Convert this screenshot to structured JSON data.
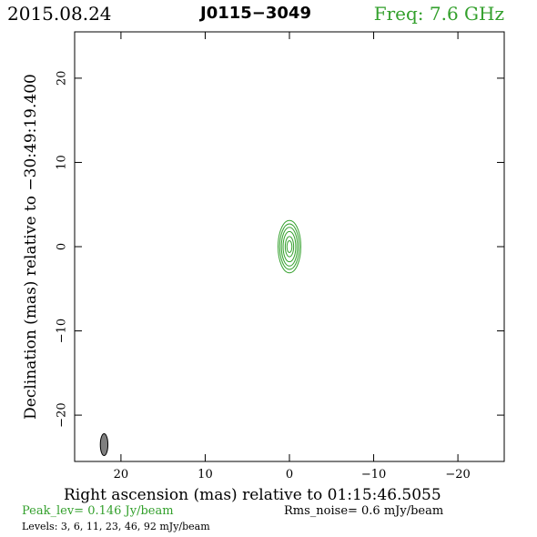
{
  "header": {
    "date": "2015.08.24",
    "source": "J0115−3049",
    "freq": "Freq: 7.6 GHz"
  },
  "footer": {
    "peak": "Peak_lev=  0.146 Jy/beam",
    "rms": "Rms_noise=   0.6 mJy/beam",
    "levels": "Levels:   3,   6,  11,  23,  46,  92 mJy/beam"
  },
  "colors": {
    "contour": "#33a02c",
    "beam": "#7f7f7f",
    "frame": "#000000"
  },
  "chart_data": {
    "type": "contour",
    "xlabel": "Right ascension (mas) relative to 01:15:46.5055",
    "ylabel": "Declination (mas) relative to −30:49:19.400",
    "xlim": [
      25.5,
      -25.5
    ],
    "ylim": [
      -25.5,
      25.5
    ],
    "xticks": [
      20,
      10,
      0,
      -10,
      -20
    ],
    "yticks": [
      20,
      10,
      0,
      -10,
      -20
    ],
    "xtick_labels": [
      "20",
      "10",
      "0",
      "−10",
      "−20"
    ],
    "ytick_labels": [
      "20",
      "10",
      "0",
      "−10",
      "−20"
    ],
    "levels_mJy": [
      3,
      6,
      11,
      23,
      46,
      92
    ],
    "peak_Jy_per_beam": 0.146,
    "rms_mJy_per_beam": 0.6,
    "contours": [
      {
        "level": 3,
        "center": [
          0.0,
          0.0
        ],
        "half_width": 1.35,
        "half_height": 3.1
      },
      {
        "level": 6,
        "center": [
          0.0,
          0.0
        ],
        "half_width": 1.15,
        "half_height": 2.7
      },
      {
        "level": 11,
        "center": [
          0.0,
          0.0
        ],
        "half_width": 0.95,
        "half_height": 2.3
      },
      {
        "level": 23,
        "center": [
          0.0,
          0.0
        ],
        "half_width": 0.75,
        "half_height": 1.8
      },
      {
        "level": 46,
        "center": [
          0.0,
          0.0
        ],
        "half_width": 0.5,
        "half_height": 1.2
      },
      {
        "level": 92,
        "center": [
          0.0,
          0.0
        ],
        "half_width": 0.3,
        "half_height": 0.7
      }
    ],
    "beam": {
      "center": [
        22.0,
        -23.5
      ],
      "half_width": 0.45,
      "half_height": 1.3
    }
  }
}
